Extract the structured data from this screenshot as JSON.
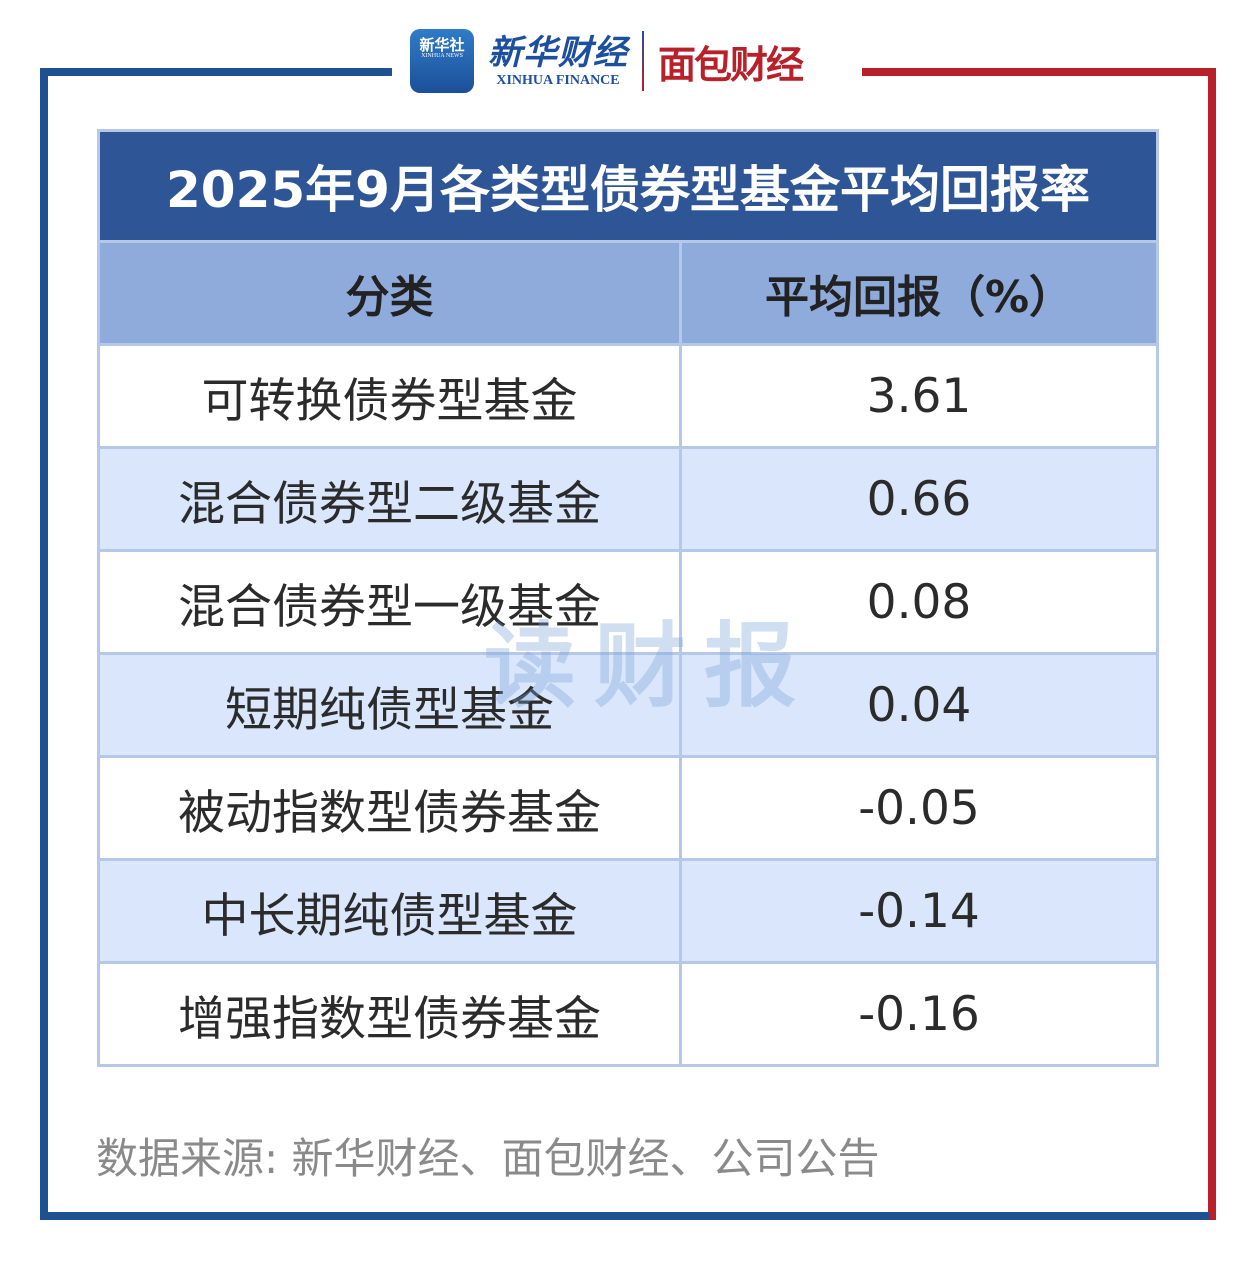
{
  "header": {
    "logo_xinhua_news": "新华社",
    "logo_xinhua_news_en": "XINHUA NEWS",
    "logo_xinhua_finance": "新华财经",
    "logo_xinhua_finance_en": "XINHUA FINANCE",
    "logo_mianbao": "面包财经"
  },
  "colors": {
    "frame_blue": "#1f5092",
    "frame_red": "#b8202a",
    "title_bg": "#2e5596",
    "header_bg": "#8eabdc",
    "alt_row_bg": "#d9e6fb"
  },
  "watermark": "读财报",
  "chart_data": {
    "type": "table",
    "title": "2025年9月各类型债券型基金平均回报率",
    "columns": [
      "分类",
      "平均回报（%）"
    ],
    "rows": [
      [
        "可转换债券型基金",
        "3.61"
      ],
      [
        "混合债券型二级基金",
        "0.66"
      ],
      [
        "混合债券型一级基金",
        "0.08"
      ],
      [
        "短期纯债型基金",
        "0.04"
      ],
      [
        "被动指数型债券基金",
        "-0.05"
      ],
      [
        "中长期纯债型基金",
        "-0.14"
      ],
      [
        "增强指数型债券基金",
        "-0.16"
      ]
    ]
  },
  "footer": {
    "source": "数据来源: 新华财经、面包财经、公司公告"
  }
}
